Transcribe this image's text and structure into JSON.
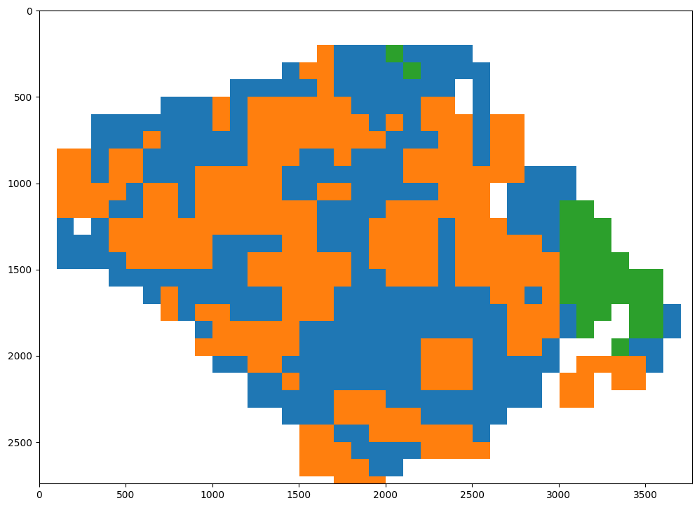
{
  "chart_data": {
    "type": "image",
    "colors": [
      "#ffffff",
      "#1f77b4",
      "#ff7f0e",
      "#2ca02c"
    ],
    "extent": [
      0,
      3800,
      2800,
      0
    ],
    "xlim": [
      0,
      3770
    ],
    "ylim": [
      2740,
      0
    ],
    "xticks": [
      0,
      500,
      1000,
      1500,
      2000,
      2500,
      3000,
      3500
    ],
    "yticks": [
      0,
      500,
      1000,
      1500,
      2000,
      2500
    ],
    "cells": [
      [
        0,
        0,
        0,
        0,
        0,
        0,
        0,
        0,
        0,
        0,
        0,
        0,
        0,
        0,
        0,
        0,
        0,
        0,
        0,
        0,
        0,
        0,
        0,
        0,
        0,
        0,
        0,
        0,
        0,
        0,
        0,
        0,
        0,
        0,
        0,
        0,
        0,
        0
      ],
      [
        0,
        0,
        0,
        0,
        0,
        0,
        0,
        0,
        0,
        0,
        0,
        0,
        0,
        0,
        0,
        0,
        0,
        0,
        0,
        0,
        0,
        0,
        0,
        0,
        0,
        0,
        0,
        0,
        0,
        0,
        0,
        0,
        0,
        0,
        0,
        0,
        0,
        0
      ],
      [
        0,
        0,
        0,
        0,
        0,
        0,
        0,
        0,
        0,
        0,
        0,
        0,
        0,
        0,
        0,
        0,
        2,
        1,
        1,
        1,
        3,
        1,
        1,
        1,
        1,
        0,
        0,
        0,
        0,
        0,
        0,
        0,
        0,
        0,
        0,
        0,
        0,
        0
      ],
      [
        0,
        0,
        0,
        0,
        0,
        0,
        0,
        0,
        0,
        0,
        0,
        0,
        0,
        0,
        1,
        2,
        2,
        1,
        1,
        1,
        1,
        3,
        1,
        1,
        1,
        1,
        0,
        0,
        0,
        0,
        0,
        0,
        0,
        0,
        0,
        0,
        0,
        0
      ],
      [
        0,
        0,
        0,
        0,
        0,
        0,
        0,
        0,
        0,
        0,
        0,
        1,
        1,
        1,
        1,
        1,
        2,
        1,
        1,
        1,
        1,
        1,
        1,
        1,
        0,
        1,
        0,
        0,
        0,
        0,
        0,
        0,
        0,
        0,
        0,
        0,
        0,
        0
      ],
      [
        0,
        0,
        0,
        0,
        0,
        0,
        0,
        1,
        1,
        1,
        2,
        1,
        2,
        2,
        2,
        2,
        2,
        2,
        1,
        1,
        1,
        1,
        2,
        2,
        0,
        1,
        0,
        0,
        0,
        0,
        0,
        0,
        0,
        0,
        0,
        0,
        0,
        0
      ],
      [
        0,
        0,
        0,
        1,
        1,
        1,
        1,
        1,
        1,
        1,
        2,
        1,
        2,
        2,
        2,
        2,
        2,
        2,
        2,
        1,
        2,
        1,
        2,
        2,
        2,
        1,
        2,
        2,
        0,
        0,
        0,
        0,
        0,
        0,
        0,
        0,
        0,
        0
      ],
      [
        0,
        0,
        0,
        1,
        1,
        1,
        2,
        1,
        1,
        1,
        1,
        1,
        2,
        2,
        2,
        2,
        2,
        2,
        2,
        2,
        1,
        1,
        1,
        2,
        2,
        1,
        2,
        2,
        0,
        0,
        0,
        0,
        0,
        0,
        0,
        0,
        0,
        0
      ],
      [
        0,
        2,
        2,
        1,
        2,
        2,
        1,
        1,
        1,
        1,
        1,
        1,
        2,
        2,
        2,
        1,
        1,
        2,
        1,
        1,
        1,
        2,
        2,
        2,
        2,
        1,
        2,
        2,
        0,
        0,
        0,
        0,
        0,
        0,
        0,
        0,
        0,
        0
      ],
      [
        0,
        2,
        2,
        1,
        2,
        2,
        1,
        1,
        1,
        2,
        2,
        2,
        2,
        2,
        1,
        1,
        1,
        1,
        1,
        1,
        1,
        2,
        2,
        2,
        2,
        2,
        2,
        2,
        1,
        1,
        1,
        0,
        0,
        0,
        0,
        0,
        0,
        0
      ],
      [
        0,
        2,
        2,
        2,
        2,
        1,
        2,
        2,
        1,
        2,
        2,
        2,
        2,
        2,
        1,
        1,
        2,
        2,
        1,
        1,
        1,
        1,
        1,
        2,
        2,
        2,
        0,
        1,
        1,
        1,
        1,
        0,
        0,
        0,
        0,
        0,
        0,
        0
      ],
      [
        0,
        2,
        2,
        2,
        1,
        1,
        2,
        2,
        1,
        2,
        2,
        2,
        2,
        2,
        2,
        2,
        1,
        1,
        1,
        1,
        2,
        2,
        2,
        2,
        2,
        2,
        0,
        1,
        1,
        1,
        3,
        3,
        0,
        0,
        0,
        0,
        0,
        0
      ],
      [
        0,
        1,
        0,
        1,
        2,
        2,
        2,
        2,
        2,
        2,
        2,
        2,
        2,
        2,
        2,
        2,
        1,
        1,
        1,
        2,
        2,
        2,
        2,
        1,
        2,
        2,
        2,
        1,
        1,
        1,
        3,
        3,
        3,
        0,
        0,
        0,
        0,
        0
      ],
      [
        0,
        1,
        1,
        1,
        2,
        2,
        2,
        2,
        2,
        2,
        1,
        1,
        1,
        1,
        2,
        2,
        1,
        1,
        1,
        2,
        2,
        2,
        2,
        1,
        2,
        2,
        2,
        2,
        2,
        1,
        3,
        3,
        3,
        0,
        0,
        0,
        0,
        0
      ],
      [
        0,
        1,
        1,
        1,
        1,
        2,
        2,
        2,
        2,
        2,
        1,
        1,
        2,
        2,
        2,
        2,
        2,
        2,
        1,
        2,
        2,
        2,
        2,
        1,
        2,
        2,
        2,
        2,
        2,
        2,
        3,
        3,
        3,
        3,
        0,
        0,
        0,
        0
      ],
      [
        0,
        0,
        0,
        0,
        1,
        1,
        1,
        1,
        1,
        1,
        1,
        1,
        2,
        2,
        2,
        2,
        2,
        2,
        1,
        1,
        2,
        2,
        2,
        1,
        2,
        2,
        2,
        2,
        2,
        2,
        3,
        3,
        3,
        3,
        3,
        3,
        0,
        0
      ],
      [
        0,
        0,
        0,
        0,
        0,
        0,
        1,
        2,
        1,
        1,
        1,
        1,
        1,
        1,
        2,
        2,
        2,
        1,
        1,
        1,
        1,
        1,
        1,
        1,
        1,
        1,
        2,
        2,
        1,
        2,
        3,
        3,
        3,
        3,
        3,
        3,
        0,
        0
      ],
      [
        0,
        0,
        0,
        0,
        0,
        0,
        0,
        2,
        1,
        2,
        2,
        1,
        1,
        1,
        2,
        2,
        2,
        1,
        1,
        1,
        1,
        1,
        1,
        1,
        1,
        1,
        1,
        2,
        2,
        2,
        1,
        3,
        3,
        0,
        3,
        3,
        1,
        0
      ],
      [
        0,
        0,
        0,
        0,
        0,
        0,
        0,
        0,
        0,
        1,
        2,
        2,
        2,
        2,
        2,
        1,
        1,
        1,
        1,
        1,
        1,
        1,
        1,
        1,
        1,
        1,
        1,
        2,
        2,
        2,
        1,
        3,
        0,
        0,
        3,
        3,
        1,
        0
      ],
      [
        0,
        0,
        0,
        0,
        0,
        0,
        0,
        0,
        0,
        2,
        2,
        2,
        2,
        2,
        2,
        1,
        1,
        1,
        1,
        1,
        1,
        1,
        2,
        2,
        2,
        1,
        1,
        2,
        2,
        1,
        0,
        0,
        0,
        3,
        1,
        1,
        0,
        0
      ],
      [
        0,
        0,
        0,
        0,
        0,
        0,
        0,
        0,
        0,
        0,
        1,
        1,
        2,
        2,
        1,
        1,
        1,
        1,
        1,
        1,
        1,
        1,
        2,
        2,
        2,
        1,
        1,
        1,
        1,
        1,
        0,
        2,
        2,
        2,
        2,
        1,
        0,
        0
      ],
      [
        0,
        0,
        0,
        0,
        0,
        0,
        0,
        0,
        0,
        0,
        0,
        0,
        1,
        1,
        2,
        1,
        1,
        1,
        1,
        1,
        1,
        1,
        2,
        2,
        2,
        1,
        1,
        1,
        1,
        0,
        2,
        2,
        0,
        2,
        2,
        0,
        0,
        0
      ],
      [
        0,
        0,
        0,
        0,
        0,
        0,
        0,
        0,
        0,
        0,
        0,
        0,
        1,
        1,
        1,
        1,
        1,
        2,
        2,
        2,
        1,
        1,
        1,
        1,
        1,
        1,
        1,
        1,
        1,
        0,
        2,
        2,
        0,
        0,
        0,
        0,
        0,
        0
      ],
      [
        0,
        0,
        0,
        0,
        0,
        0,
        0,
        0,
        0,
        0,
        0,
        0,
        0,
        0,
        1,
        1,
        1,
        2,
        2,
        2,
        2,
        2,
        1,
        1,
        1,
        1,
        1,
        0,
        0,
        0,
        0,
        0,
        0,
        0,
        0,
        0,
        0,
        0
      ],
      [
        0,
        0,
        0,
        0,
        0,
        0,
        0,
        0,
        0,
        0,
        0,
        0,
        0,
        0,
        0,
        2,
        2,
        1,
        1,
        2,
        2,
        2,
        2,
        2,
        2,
        1,
        0,
        0,
        0,
        0,
        0,
        0,
        0,
        0,
        0,
        0,
        0,
        0
      ],
      [
        0,
        0,
        0,
        0,
        0,
        0,
        0,
        0,
        0,
        0,
        0,
        0,
        0,
        0,
        0,
        2,
        2,
        2,
        1,
        1,
        1,
        1,
        2,
        2,
        2,
        2,
        0,
        0,
        0,
        0,
        0,
        0,
        0,
        0,
        0,
        0,
        0,
        0
      ],
      [
        0,
        0,
        0,
        0,
        0,
        0,
        0,
        0,
        0,
        0,
        0,
        0,
        0,
        0,
        0,
        2,
        2,
        2,
        2,
        1,
        1,
        0,
        0,
        0,
        0,
        0,
        0,
        0,
        0,
        0,
        0,
        0,
        0,
        0,
        0,
        0,
        0,
        0
      ],
      [
        0,
        0,
        0,
        0,
        0,
        0,
        0,
        0,
        0,
        0,
        0,
        0,
        0,
        0,
        0,
        0,
        0,
        2,
        2,
        2,
        0,
        0,
        0,
        0,
        0,
        0,
        0,
        0,
        0,
        0,
        0,
        0,
        0,
        0,
        0,
        0,
        0,
        0
      ]
    ]
  }
}
